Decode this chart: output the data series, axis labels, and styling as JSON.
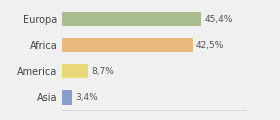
{
  "categories": [
    "Europa",
    "Africa",
    "America",
    "Asia"
  ],
  "values": [
    45.4,
    42.5,
    8.7,
    3.4
  ],
  "labels": [
    "45,4%",
    "42,5%",
    "8,7%",
    "3,4%"
  ],
  "bar_colors": [
    "#a8bc8f",
    "#e8b87e",
    "#e8d87a",
    "#8a9ecc"
  ],
  "background_color": "#f0f0f0",
  "xlim": [
    0,
    60
  ],
  "bar_height": 0.55
}
